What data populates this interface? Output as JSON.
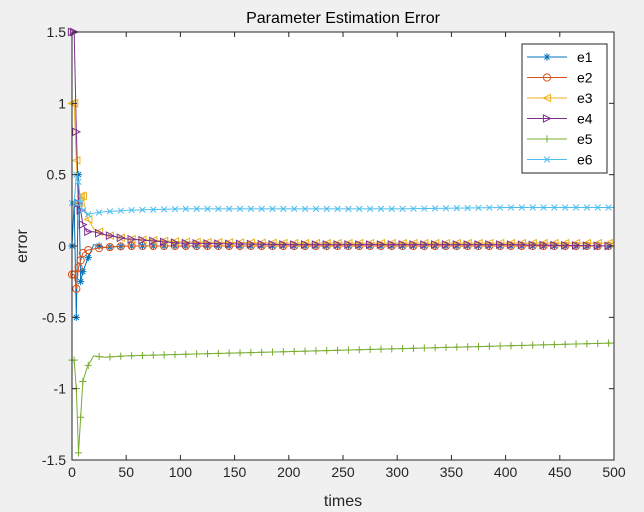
{
  "chart_data": {
    "type": "line",
    "title": "Parameter Estimation Error",
    "xlabel": "times",
    "ylabel": "error",
    "xlim": [
      0,
      500
    ],
    "ylim": [
      -1.5,
      1.5
    ],
    "xticks": [
      0,
      50,
      100,
      150,
      200,
      250,
      300,
      350,
      400,
      450,
      500
    ],
    "yticks": [
      -1.5,
      -1,
      -0.5,
      0,
      0.5,
      1,
      1.5
    ],
    "xtick_labels": [
      "0",
      "50",
      "100",
      "150",
      "200",
      "250",
      "300",
      "350",
      "400",
      "450",
      "500"
    ],
    "ytick_labels": [
      "-1.5",
      "-1",
      "-0.5",
      "0",
      "0.5",
      "1",
      "1.5"
    ],
    "grid": false,
    "legend_position": "top-right",
    "series": [
      {
        "name": "e1",
        "color": "#0072BD",
        "marker": "asterisk",
        "x": [
          0,
          2,
          4,
          6,
          8,
          10,
          14,
          20,
          30,
          50,
          100,
          200,
          300,
          400,
          500
        ],
        "y": [
          0,
          0.3,
          -0.5,
          0.5,
          -0.25,
          -0.18,
          -0.1,
          0.01,
          -0.01,
          0,
          0,
          0,
          0,
          0,
          0
        ]
      },
      {
        "name": "e2",
        "color": "#D95319",
        "marker": "circle",
        "x": [
          0,
          2,
          4,
          6,
          8,
          10,
          14,
          20,
          30,
          50,
          100,
          200,
          300,
          400,
          500
        ],
        "y": [
          -0.2,
          -0.2,
          -0.3,
          -0.15,
          -0.1,
          -0.05,
          -0.03,
          -0.02,
          -0.01,
          0,
          0,
          0,
          0,
          0,
          0
        ]
      },
      {
        "name": "e3",
        "color": "#EDB120",
        "marker": "triangle-left",
        "x": [
          0,
          2,
          4,
          6,
          8,
          10,
          14,
          20,
          30,
          50,
          100,
          200,
          300,
          400,
          500
        ],
        "y": [
          1.0,
          1.0,
          0.6,
          0.3,
          0.35,
          0.35,
          0.2,
          0.12,
          0.08,
          0.05,
          0.03,
          0.02,
          0.02,
          0.02,
          0.02
        ]
      },
      {
        "name": "e4",
        "color": "#7E2F8E",
        "marker": "triangle-right",
        "x": [
          0,
          2,
          4,
          6,
          8,
          10,
          14,
          20,
          30,
          50,
          100,
          200,
          300,
          400,
          500
        ],
        "y": [
          1.5,
          1.5,
          0.8,
          0.3,
          0.25,
          0.15,
          0.1,
          0.1,
          0.08,
          0.05,
          0.02,
          0.01,
          0.01,
          0.01,
          0
        ]
      },
      {
        "name": "e5",
        "color": "#77AC30",
        "marker": "plus",
        "x": [
          0,
          2,
          4,
          6,
          8,
          10,
          14,
          20,
          30,
          50,
          100,
          200,
          300,
          400,
          500
        ],
        "y": [
          -0.8,
          -0.8,
          -1.0,
          -1.45,
          -1.2,
          -0.95,
          -0.85,
          -0.77,
          -0.78,
          -0.77,
          -0.76,
          -0.74,
          -0.72,
          -0.7,
          -0.68
        ]
      },
      {
        "name": "e6",
        "color": "#4DBEEE",
        "marker": "x",
        "x": [
          0,
          2,
          4,
          6,
          8,
          10,
          14,
          20,
          30,
          50,
          100,
          200,
          300,
          400,
          500
        ],
        "y": [
          0.3,
          0.3,
          0.5,
          0.45,
          0.3,
          0.25,
          0.22,
          0.23,
          0.24,
          0.25,
          0.26,
          0.26,
          0.26,
          0.27,
          0.27
        ]
      }
    ]
  }
}
